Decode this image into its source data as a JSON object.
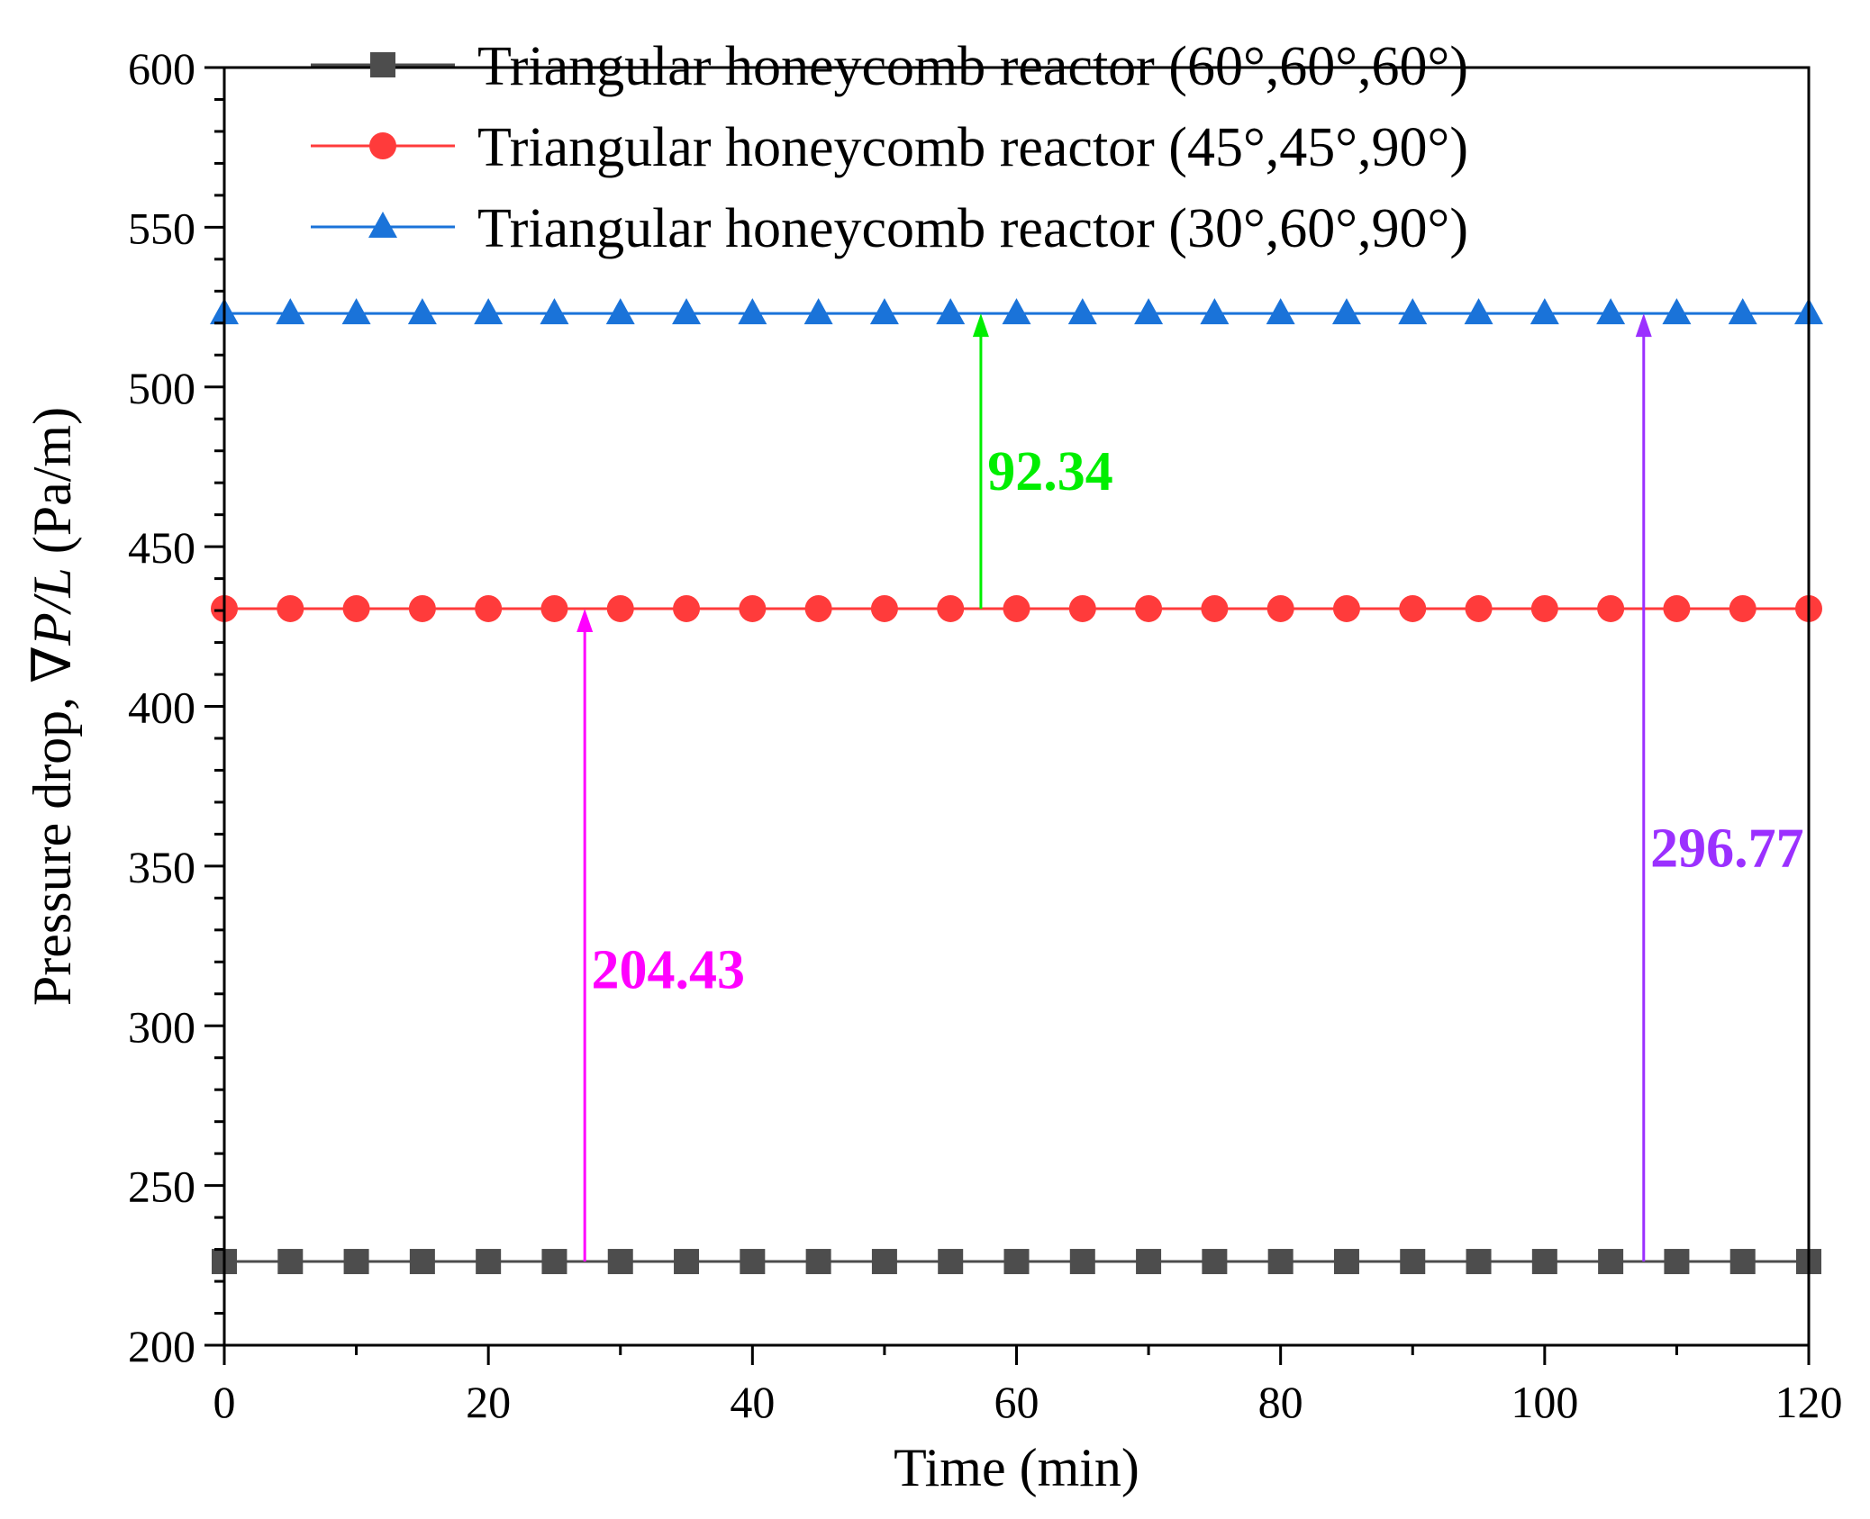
{
  "chart_data": {
    "type": "line",
    "title": "",
    "xlabel": "Time (min)",
    "ylabel_prefix": "Pressure drop, ",
    "ylabel_symbol": "∇",
    "ylabel_math": "P/L",
    "ylabel_suffix": " (Pa/m)",
    "xlim": [
      0,
      120
    ],
    "ylim": [
      200,
      600
    ],
    "x_ticks": [
      0,
      20,
      40,
      60,
      80,
      100,
      120
    ],
    "x_tick_labels": [
      "0",
      "20",
      "40",
      "60",
      "80",
      "100",
      "120"
    ],
    "y_ticks": [
      200,
      250,
      300,
      350,
      400,
      450,
      500,
      550,
      600
    ],
    "y_tick_labels": [
      "200",
      "250",
      "300",
      "350",
      "400",
      "450",
      "500",
      "550",
      "600"
    ],
    "x": [
      0,
      5,
      10,
      15,
      20,
      25,
      30,
      35,
      40,
      45,
      50,
      55,
      60,
      65,
      70,
      75,
      80,
      85,
      90,
      95,
      100,
      105,
      110,
      115,
      120
    ],
    "grid": false,
    "legend_position": "top-right",
    "series": [
      {
        "name": "Triangular honeycomb reactor (60°,60°,60°)",
        "color": "#4d4d4d",
        "marker": "square",
        "values": [
          226.2,
          226.2,
          226.2,
          226.2,
          226.2,
          226.2,
          226.2,
          226.2,
          226.2,
          226.2,
          226.2,
          226.2,
          226.2,
          226.2,
          226.2,
          226.2,
          226.2,
          226.2,
          226.2,
          226.2,
          226.2,
          226.2,
          226.2,
          226.2,
          226.2
        ]
      },
      {
        "name": "Triangular honeycomb reactor (45°,45°,90°)",
        "color": "#ff3b3b",
        "marker": "circle",
        "values": [
          430.6,
          430.6,
          430.6,
          430.6,
          430.6,
          430.6,
          430.6,
          430.6,
          430.6,
          430.6,
          430.6,
          430.6,
          430.6,
          430.6,
          430.6,
          430.6,
          430.6,
          430.6,
          430.6,
          430.6,
          430.6,
          430.6,
          430.6,
          430.6,
          430.6
        ]
      },
      {
        "name": "Triangular honeycomb reactor (30°,60°,90°)",
        "color": "#1a73d9",
        "marker": "triangle",
        "values": [
          523.0,
          523.0,
          523.0,
          523.0,
          523.0,
          523.0,
          523.0,
          523.0,
          523.0,
          523.0,
          523.0,
          523.0,
          523.0,
          523.0,
          523.0,
          523.0,
          523.0,
          523.0,
          523.0,
          523.0,
          523.0,
          523.0,
          523.0,
          523.0,
          523.0
        ]
      }
    ],
    "annotations": [
      {
        "label": "92.34",
        "x": 57.3,
        "y_from": 430.6,
        "y_to": 523.0,
        "color": "#00ee00",
        "label_x": 57.8,
        "label_y": 474,
        "anchor": "start"
      },
      {
        "label": "204.43",
        "x": 27.3,
        "y_from": 226.2,
        "y_to": 430.6,
        "color": "#ff00ff",
        "label_x": 27.8,
        "label_y": 318,
        "anchor": "start"
      },
      {
        "label": "296.77",
        "x": 107.5,
        "y_from": 226.2,
        "y_to": 523.0,
        "color": "#9b30ff",
        "label_x": 108.0,
        "label_y": 356,
        "anchor": "start"
      }
    ]
  }
}
